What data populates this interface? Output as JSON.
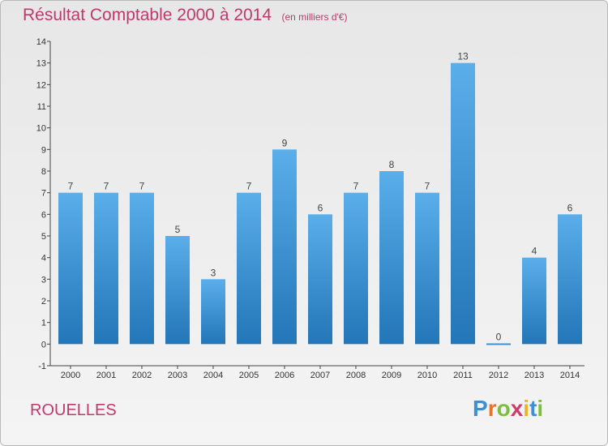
{
  "header": {
    "title": "Résultat Comptable 2000 à 2014",
    "subtitle": "(en milliers d'€)"
  },
  "footer": {
    "commune": "ROUELLES",
    "logo_letters": [
      "P",
      "r",
      "o",
      "x",
      "i",
      "t",
      "i"
    ],
    "logo_colors": [
      "#3d8fd6",
      "#e8732a",
      "#7cbf3a",
      "#d23a6b",
      "#e8b42a",
      "#3d8fd6",
      "#7cbf3a"
    ]
  },
  "colors": {
    "bar_top": "#5aaeea",
    "bar_bottom": "#2376b7",
    "title": "#c0396b",
    "axis": "#444444"
  },
  "chart_data": {
    "type": "bar",
    "categories": [
      "2000",
      "2001",
      "2002",
      "2003",
      "2004",
      "2005",
      "2006",
      "2007",
      "2008",
      "2009",
      "2010",
      "2011",
      "2012",
      "2013",
      "2014"
    ],
    "values": [
      7,
      7,
      7,
      5,
      3,
      7,
      9,
      6,
      7,
      8,
      7,
      13,
      0,
      4,
      6
    ],
    "data_labels": [
      "7",
      "7",
      "7",
      "5",
      "3",
      "7",
      "9",
      "6",
      "7",
      "8",
      "7",
      "13",
      "0",
      "4",
      "6"
    ],
    "y_ticks": [
      "-1",
      "0",
      "1",
      "2",
      "3",
      "4",
      "5",
      "6",
      "7",
      "8",
      "9",
      "10",
      "11",
      "12",
      "13",
      "14"
    ],
    "ylim": [
      -1,
      14
    ],
    "grid": false,
    "xlabel": "",
    "ylabel": ""
  }
}
